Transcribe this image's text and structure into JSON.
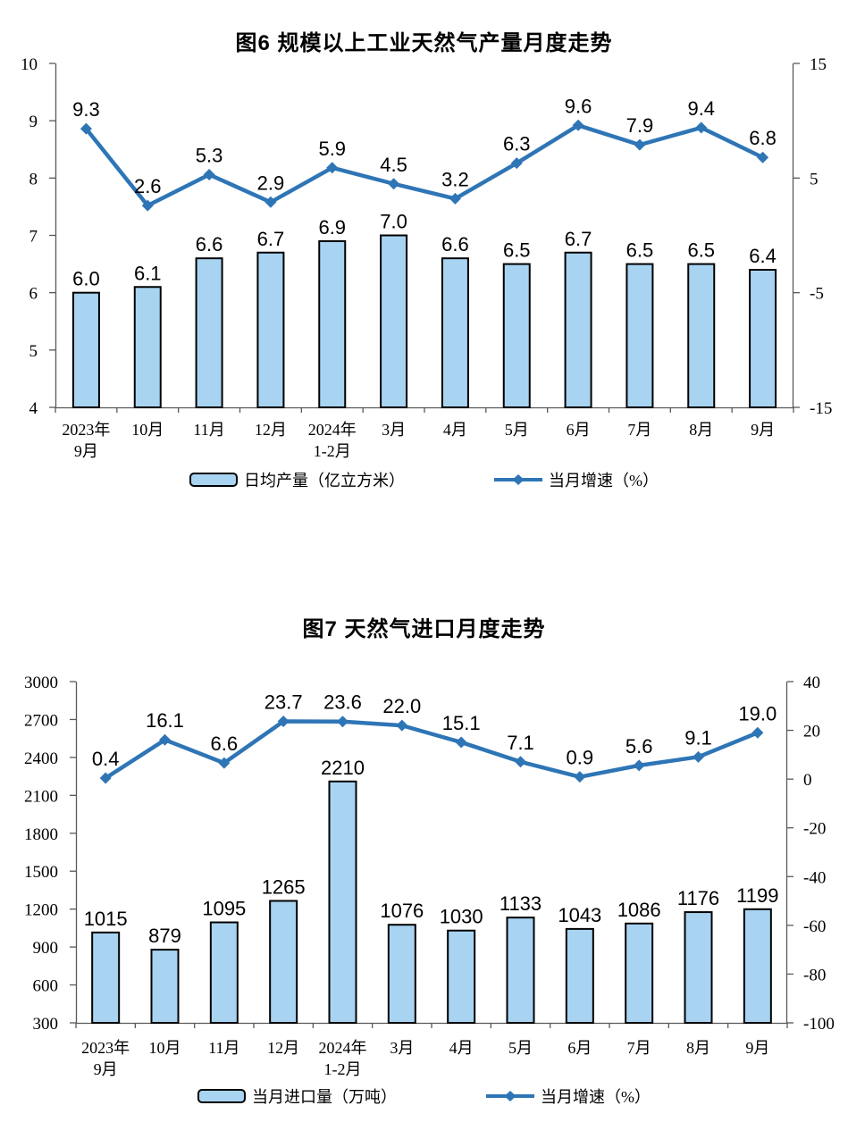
{
  "colors": {
    "bar_fill": "#A8D4F2",
    "bar_border": "#000000",
    "line": "#2E75B6",
    "axis": "#595959",
    "text": "#000000"
  },
  "chart_data": [
    {
      "type": "bar+line",
      "title": "图6 规模以上工业天然气产量月度走势",
      "categories": [
        [
          "2023年",
          "9月"
        ],
        [
          "10月"
        ],
        [
          "11月"
        ],
        [
          "12月"
        ],
        [
          "2024年",
          "1-2月"
        ],
        [
          "3月"
        ],
        [
          "4月"
        ],
        [
          "5月"
        ],
        [
          "6月"
        ],
        [
          "7月"
        ],
        [
          "8月"
        ],
        [
          "9月"
        ]
      ],
      "series": [
        {
          "name": "日均产量（亿立方米）",
          "type": "bar",
          "axis": "left",
          "values": [
            6.0,
            6.1,
            6.6,
            6.7,
            6.9,
            7.0,
            6.6,
            6.5,
            6.7,
            6.5,
            6.5,
            6.4
          ],
          "labels": [
            "6.0",
            "6.1",
            "6.6",
            "6.7",
            "6.9",
            "7.0",
            "6.6",
            "6.5",
            "6.7",
            "6.5",
            "6.5",
            "6.4"
          ]
        },
        {
          "name": "当月增速（%）",
          "type": "line",
          "axis": "right",
          "values": [
            9.3,
            2.6,
            5.3,
            2.9,
            5.9,
            4.5,
            3.2,
            6.3,
            9.6,
            7.9,
            9.4,
            6.8
          ],
          "labels": [
            "9.3",
            "2.6",
            "5.3",
            "2.9",
            "5.9",
            "4.5",
            "3.2",
            "6.3",
            "9.6",
            "7.9",
            "9.4",
            "6.8"
          ]
        }
      ],
      "left_axis": {
        "min": 4,
        "max": 10,
        "ticks": [
          10,
          9,
          8,
          7,
          6,
          5,
          4
        ]
      },
      "right_axis": {
        "min": -15,
        "max": 15,
        "ticks": [
          15,
          5,
          -5,
          -15
        ]
      },
      "grid": false,
      "legend_position": "bottom"
    },
    {
      "type": "bar+line",
      "title": "图7 天然气进口月度走势",
      "categories": [
        [
          "2023年",
          "9月"
        ],
        [
          "10月"
        ],
        [
          "11月"
        ],
        [
          "12月"
        ],
        [
          "2024年",
          "1-2月"
        ],
        [
          "3月"
        ],
        [
          "4月"
        ],
        [
          "5月"
        ],
        [
          "6月"
        ],
        [
          "7月"
        ],
        [
          "8月"
        ],
        [
          "9月"
        ]
      ],
      "series": [
        {
          "name": "当月进口量（万吨）",
          "type": "bar",
          "axis": "left",
          "values": [
            1015,
            879,
            1095,
            1265,
            2210,
            1076,
            1030,
            1133,
            1043,
            1086,
            1176,
            1199
          ],
          "labels": [
            "1015",
            "879",
            "1095",
            "1265",
            "2210",
            "1076",
            "1030",
            "1133",
            "1043",
            "1086",
            "1176",
            "1199"
          ]
        },
        {
          "name": "当月增速（%）",
          "type": "line",
          "axis": "right",
          "values": [
            0.4,
            16.1,
            6.6,
            23.7,
            23.6,
            22.0,
            15.1,
            7.1,
            0.9,
            5.6,
            9.1,
            19.0
          ],
          "labels": [
            "0.4",
            "16.1",
            "6.6",
            "23.7",
            "23.6",
            "22.0",
            "15.1",
            "7.1",
            "0.9",
            "5.6",
            "9.1",
            "19.0"
          ]
        }
      ],
      "left_axis": {
        "min": 300,
        "max": 3000,
        "ticks": [
          3000,
          2700,
          2400,
          2100,
          1800,
          1500,
          1200,
          900,
          600,
          300
        ]
      },
      "right_axis": {
        "min": -100,
        "max": 40,
        "ticks": [
          40,
          20,
          0,
          -20,
          -40,
          -60,
          -80,
          -100
        ]
      },
      "grid": false,
      "legend_position": "bottom"
    }
  ]
}
